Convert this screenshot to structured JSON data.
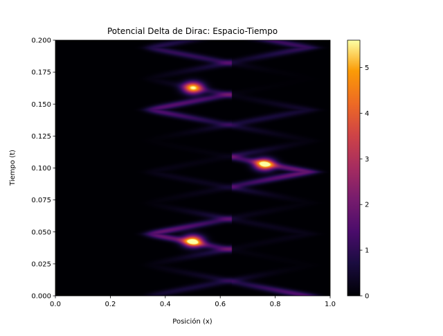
{
  "chart_data": {
    "type": "heatmap",
    "title": "Potencial Delta de Dirac: Espacio-Tiempo",
    "xlabel": "Posición (x)",
    "ylabel": "Tiempo (t)",
    "xlim": [
      0.0,
      1.0
    ],
    "ylim": [
      0.0,
      0.2
    ],
    "x_ticks": [
      "0.0",
      "0.2",
      "0.4",
      "0.6",
      "0.8",
      "1.0"
    ],
    "y_ticks": [
      "0.000",
      "0.025",
      "0.050",
      "0.075",
      "0.100",
      "0.125",
      "0.150",
      "0.175",
      "0.200"
    ],
    "colorbar": {
      "colormap": "inferno",
      "range": [
        0,
        5.6
      ],
      "ticks": [
        "0",
        "1",
        "2",
        "3",
        "4",
        "5"
      ]
    },
    "z_summary": {
      "zero_region_x": [
        0.0,
        0.28
      ],
      "peaks": [
        {
          "x": 0.5,
          "t": 0.043,
          "value": 5.4
        },
        {
          "x": 0.5,
          "t": 0.163,
          "value": 5.2
        },
        {
          "x": 0.76,
          "t": 0.103,
          "value": 5.3
        }
      ]
    }
  }
}
